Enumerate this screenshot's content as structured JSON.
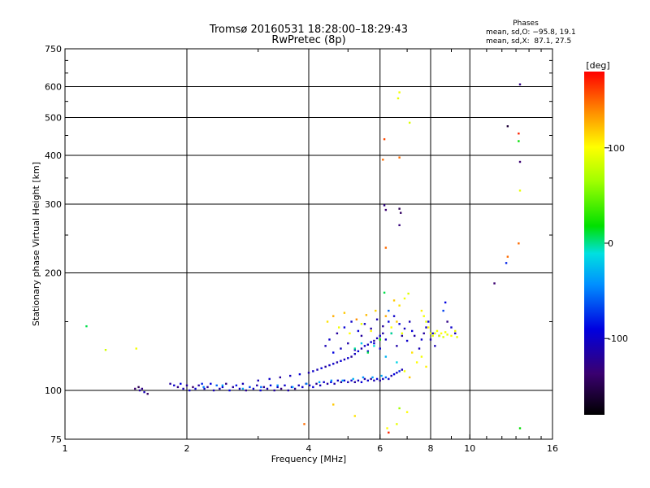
{
  "chart_data": {
    "type": "scatter",
    "title": "Tromsø 20160531 18:28:00–18:29:43",
    "subtitle": "RwPretec (8p)",
    "xlabel": "Frequency [MHz]",
    "ylabel": "Stationary phase Virtual Height [km]",
    "xscale": "log",
    "yscale": "log",
    "xlim": [
      1,
      16
    ],
    "ylim": [
      75,
      750
    ],
    "xticks": [
      1,
      2,
      4,
      6,
      8,
      10,
      16
    ],
    "yticks": [
      75,
      100,
      200,
      300,
      400,
      500,
      600,
      750
    ],
    "grid": true,
    "phase_stats": {
      "heading": "Phases",
      "line_o": "mean, sd,O: −95.8, 19.1",
      "line_x": "mean, sd,X:  87.1, 27.5"
    },
    "colorbar": {
      "label": "[deg]",
      "range": [
        -180,
        180
      ],
      "ticks": [
        100,
        0,
        -100
      ]
    },
    "points": [
      [
        1.13,
        146,
        10
      ],
      [
        1.26,
        127,
        80
      ],
      [
        1.5,
        128,
        95
      ],
      [
        1.49,
        101,
        -140
      ],
      [
        1.52,
        102,
        -150
      ],
      [
        1.53,
        100,
        -120
      ],
      [
        1.55,
        101,
        -130
      ],
      [
        1.57,
        99,
        -110
      ],
      [
        1.6,
        98,
        -145
      ],
      [
        1.82,
        104,
        -120
      ],
      [
        1.86,
        103,
        -100
      ],
      [
        1.9,
        102,
        -130
      ],
      [
        1.93,
        104,
        -90
      ],
      [
        1.96,
        101,
        -110
      ],
      [
        2.0,
        103,
        -120
      ],
      [
        2.03,
        100,
        -100
      ],
      [
        2.07,
        102,
        -140
      ],
      [
        2.1,
        101,
        -95
      ],
      [
        2.14,
        103,
        -120
      ],
      [
        2.18,
        104,
        -80
      ],
      [
        2.21,
        101,
        -105
      ],
      [
        2.25,
        102,
        -125
      ],
      [
        2.29,
        104,
        -90
      ],
      [
        2.33,
        100,
        -110
      ],
      [
        2.37,
        103,
        -60
      ],
      [
        2.41,
        101,
        -115
      ],
      [
        2.45,
        102,
        -100
      ],
      [
        2.5,
        104,
        -130
      ],
      [
        2.55,
        100,
        -95
      ],
      [
        2.6,
        102,
        -120
      ],
      [
        2.65,
        103,
        -85
      ],
      [
        2.7,
        101,
        -105
      ],
      [
        2.75,
        104,
        -110
      ],
      [
        2.8,
        100,
        -125
      ],
      [
        2.86,
        102,
        -70
      ],
      [
        2.92,
        101,
        -100
      ],
      [
        2.98,
        103,
        -115
      ],
      [
        3.04,
        100,
        -95
      ],
      [
        3.1,
        102,
        -125
      ],
      [
        3.16,
        101,
        -110
      ],
      [
        3.22,
        103,
        -90
      ],
      [
        3.29,
        100,
        -120
      ],
      [
        3.35,
        102,
        -105
      ],
      [
        3.42,
        101,
        -135
      ],
      [
        3.49,
        103,
        -100
      ],
      [
        3.56,
        100,
        -115
      ],
      [
        3.63,
        102,
        -95
      ],
      [
        3.7,
        101,
        -125
      ],
      [
        3.78,
        103,
        -110
      ],
      [
        3.86,
        102,
        -100
      ],
      [
        3.94,
        104,
        -120
      ],
      [
        4.02,
        103,
        -105
      ],
      [
        4.1,
        102,
        -95
      ],
      [
        4.18,
        104,
        -125
      ],
      [
        4.27,
        103,
        -110
      ],
      [
        4.36,
        105,
        -100
      ],
      [
        4.45,
        104,
        -120
      ],
      [
        4.54,
        105,
        -90
      ],
      [
        4.63,
        104,
        -115
      ],
      [
        4.72,
        106,
        -105
      ],
      [
        4.81,
        105,
        -125
      ],
      [
        4.9,
        106,
        -95
      ],
      [
        5.0,
        105,
        -110
      ],
      [
        5.1,
        106,
        -100
      ],
      [
        5.2,
        105,
        -120
      ],
      [
        5.3,
        106,
        -105
      ],
      [
        5.4,
        105,
        -95
      ],
      [
        5.5,
        107,
        -115
      ],
      [
        5.6,
        106,
        -100
      ],
      [
        5.7,
        107,
        -125
      ],
      [
        5.8,
        106,
        -110
      ],
      [
        5.9,
        107,
        -95
      ],
      [
        6.0,
        106,
        -120
      ],
      [
        6.1,
        107,
        -105
      ],
      [
        6.2,
        108,
        -60
      ],
      [
        6.3,
        107,
        -100
      ],
      [
        6.4,
        109,
        -115
      ],
      [
        6.5,
        110,
        -90
      ],
      [
        6.6,
        111,
        -105
      ],
      [
        6.7,
        112,
        -80
      ],
      [
        6.8,
        113,
        -110
      ],
      [
        2.2,
        102,
        -50
      ],
      [
        2.45,
        103,
        -40
      ],
      [
        2.75,
        101,
        -35
      ],
      [
        3.05,
        102,
        -55
      ],
      [
        3.35,
        103,
        -45
      ],
      [
        3.65,
        102,
        -40
      ],
      [
        3.95,
        104,
        -50
      ],
      [
        4.25,
        105,
        -35
      ],
      [
        4.55,
        106,
        -45
      ],
      [
        4.85,
        106,
        -40
      ],
      [
        5.15,
        107,
        -30
      ],
      [
        5.45,
        108,
        -45
      ],
      [
        5.75,
        108,
        -40
      ],
      [
        6.05,
        109,
        -35
      ],
      [
        3.0,
        106,
        -110
      ],
      [
        3.2,
        107,
        -100
      ],
      [
        3.4,
        108,
        -120
      ],
      [
        3.6,
        109,
        -105
      ],
      [
        3.8,
        110,
        -95
      ],
      [
        4.0,
        111,
        -115
      ],
      [
        4.1,
        112,
        -100
      ],
      [
        4.2,
        113,
        -110
      ],
      [
        4.3,
        114,
        -95
      ],
      [
        4.4,
        115,
        -120
      ],
      [
        4.5,
        116,
        -105
      ],
      [
        4.6,
        117,
        -100
      ],
      [
        4.7,
        118,
        -115
      ],
      [
        4.8,
        119,
        -95
      ],
      [
        4.9,
        120,
        -110
      ],
      [
        5.0,
        121,
        -100
      ],
      [
        5.1,
        122,
        -120
      ],
      [
        5.2,
        124,
        -105
      ],
      [
        5.3,
        126,
        -95
      ],
      [
        5.4,
        128,
        -115
      ],
      [
        5.5,
        130,
        -100
      ],
      [
        5.6,
        131,
        -110
      ],
      [
        5.7,
        133,
        -95
      ],
      [
        5.8,
        134,
        -120
      ],
      [
        5.9,
        136,
        -105
      ],
      [
        6.0,
        138,
        -100
      ],
      [
        6.1,
        140,
        -115
      ],
      [
        4.4,
        130,
        -110
      ],
      [
        4.5,
        135,
        -100
      ],
      [
        4.6,
        125,
        -90
      ],
      [
        4.7,
        140,
        -120
      ],
      [
        4.8,
        128,
        -105
      ],
      [
        4.9,
        145,
        -95
      ],
      [
        5.0,
        132,
        -115
      ],
      [
        5.1,
        150,
        -100
      ],
      [
        5.2,
        127,
        -110
      ],
      [
        5.3,
        142,
        -95
      ],
      [
        5.4,
        138,
        -120
      ],
      [
        5.5,
        148,
        -105
      ],
      [
        5.6,
        126,
        -100
      ],
      [
        5.7,
        144,
        -115
      ],
      [
        5.8,
        132,
        -95
      ],
      [
        5.9,
        152,
        -110
      ],
      [
        6.0,
        128,
        -100
      ],
      [
        6.1,
        146,
        -120
      ],
      [
        6.2,
        135,
        -105
      ],
      [
        6.3,
        150,
        -95
      ],
      [
        6.4,
        140,
        -110
      ],
      [
        6.5,
        155,
        -100
      ],
      [
        6.6,
        130,
        -115
      ],
      [
        6.7,
        148,
        -95
      ],
      [
        6.8,
        138,
        -120
      ],
      [
        6.9,
        144,
        -105
      ],
      [
        7.0,
        134,
        -100
      ],
      [
        7.1,
        150,
        -110
      ],
      [
        7.2,
        142,
        -95
      ],
      [
        7.3,
        138,
        -115
      ],
      [
        4.45,
        150,
        110
      ],
      [
        4.6,
        155,
        130
      ],
      [
        4.75,
        145,
        95
      ],
      [
        4.9,
        158,
        120
      ],
      [
        5.05,
        140,
        100
      ],
      [
        5.25,
        152,
        140
      ],
      [
        5.4,
        148,
        90
      ],
      [
        5.55,
        156,
        125
      ],
      [
        5.7,
        142,
        105
      ],
      [
        5.85,
        160,
        115
      ],
      [
        6.0,
        135,
        95
      ],
      [
        6.2,
        155,
        130
      ],
      [
        6.4,
        145,
        100
      ],
      [
        6.6,
        150,
        120
      ],
      [
        6.8,
        140,
        90
      ],
      [
        5.2,
        128,
        0
      ],
      [
        5.4,
        132,
        -20
      ],
      [
        5.6,
        125,
        10
      ],
      [
        5.8,
        130,
        -10
      ],
      [
        6.0,
        135,
        20
      ],
      [
        6.2,
        122,
        -30
      ],
      [
        6.4,
        140,
        0
      ],
      [
        6.6,
        118,
        -15
      ],
      [
        6.15,
        178,
        10
      ],
      [
        6.3,
        160,
        -60
      ],
      [
        6.5,
        170,
        120
      ],
      [
        6.7,
        165,
        110
      ],
      [
        6.9,
        172,
        95
      ],
      [
        7.05,
        177,
        85
      ],
      [
        7.5,
        128,
        -110
      ],
      [
        7.6,
        135,
        -100
      ],
      [
        7.7,
        140,
        -120
      ],
      [
        7.8,
        145,
        -105
      ],
      [
        7.9,
        150,
        -95
      ],
      [
        8.0,
        135,
        -115
      ],
      [
        8.1,
        140,
        -100
      ],
      [
        8.2,
        130,
        -110
      ],
      [
        8.4,
        138,
        -95
      ],
      [
        8.6,
        160,
        -70
      ],
      [
        8.7,
        168,
        -90
      ],
      [
        8.8,
        150,
        -130
      ],
      [
        9.0,
        145,
        -100
      ],
      [
        9.2,
        140,
        -110
      ],
      [
        7.6,
        160,
        105
      ],
      [
        7.7,
        155,
        95
      ],
      [
        7.8,
        150,
        90
      ],
      [
        7.9,
        145,
        100
      ],
      [
        8.0,
        140,
        95
      ],
      [
        8.1,
        138,
        90
      ],
      [
        8.2,
        140,
        85
      ],
      [
        8.3,
        142,
        95
      ],
      [
        8.4,
        138,
        90
      ],
      [
        8.5,
        140,
        100
      ],
      [
        8.6,
        137,
        85
      ],
      [
        8.7,
        141,
        95
      ],
      [
        8.8,
        139,
        90
      ],
      [
        9.0,
        138,
        100
      ],
      [
        9.2,
        142,
        95
      ],
      [
        9.3,
        137,
        90
      ],
      [
        7.2,
        125,
        110
      ],
      [
        7.4,
        118,
        100
      ],
      [
        7.6,
        122,
        95
      ],
      [
        7.8,
        115,
        105
      ],
      [
        6.9,
        112,
        95
      ],
      [
        7.1,
        108,
        120
      ],
      [
        6.15,
        298,
        -130
      ],
      [
        6.2,
        290,
        -140
      ],
      [
        6.7,
        292,
        -150
      ],
      [
        6.75,
        285,
        -145
      ],
      [
        6.7,
        265,
        -135
      ],
      [
        6.1,
        390,
        150
      ],
      [
        6.15,
        440,
        160
      ],
      [
        6.7,
        395,
        150
      ],
      [
        6.65,
        560,
        90
      ],
      [
        6.7,
        580,
        95
      ],
      [
        7.1,
        485,
        85
      ],
      [
        6.2,
        232,
        150
      ],
      [
        6.3,
        78,
        170
      ],
      [
        6.25,
        80,
        100
      ],
      [
        6.6,
        82,
        90
      ],
      [
        6.7,
        90,
        60
      ],
      [
        7.0,
        88,
        100
      ],
      [
        3.9,
        82,
        150
      ],
      [
        4.6,
        92,
        120
      ],
      [
        5.2,
        86,
        110
      ],
      [
        11.5,
        188,
        -140
      ],
      [
        12.3,
        212,
        -80
      ],
      [
        12.4,
        220,
        150
      ],
      [
        13.3,
        608,
        -130
      ],
      [
        13.3,
        385,
        -140
      ],
      [
        12.4,
        475,
        -160
      ],
      [
        13.2,
        455,
        170
      ],
      [
        13.2,
        435,
        20
      ],
      [
        13.3,
        325,
        90
      ],
      [
        13.2,
        238,
        150
      ],
      [
        13.3,
        80,
        20
      ]
    ]
  }
}
